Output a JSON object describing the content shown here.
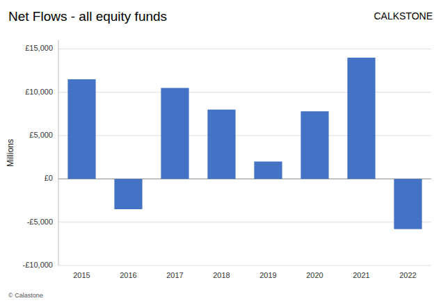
{
  "chart_data": {
    "type": "bar",
    "title": "Net Flows - all equity funds",
    "ylabel": "Millions",
    "annotations": [
      "CALΚSTONE",
      "© Calastone"
    ],
    "categories": [
      "2015",
      "2016",
      "2017",
      "2018",
      "2019",
      "2020",
      "2021",
      "2022"
    ],
    "values": [
      11500,
      -3500,
      10500,
      8000,
      2000,
      7800,
      14000,
      -5800
    ],
    "color": "#4472C4",
    "ylim": [
      -10000,
      16000
    ],
    "yticks": [
      {
        "value": -10000,
        "label": "-£10,000"
      },
      {
        "value": -5000,
        "label": "-£5,000"
      },
      {
        "value": 0,
        "label": "£0"
      },
      {
        "value": 5000,
        "label": "£5,000"
      },
      {
        "value": 10000,
        "label": "£10,000"
      },
      {
        "value": 15000,
        "label": "£15,000"
      }
    ],
    "grid": true
  }
}
